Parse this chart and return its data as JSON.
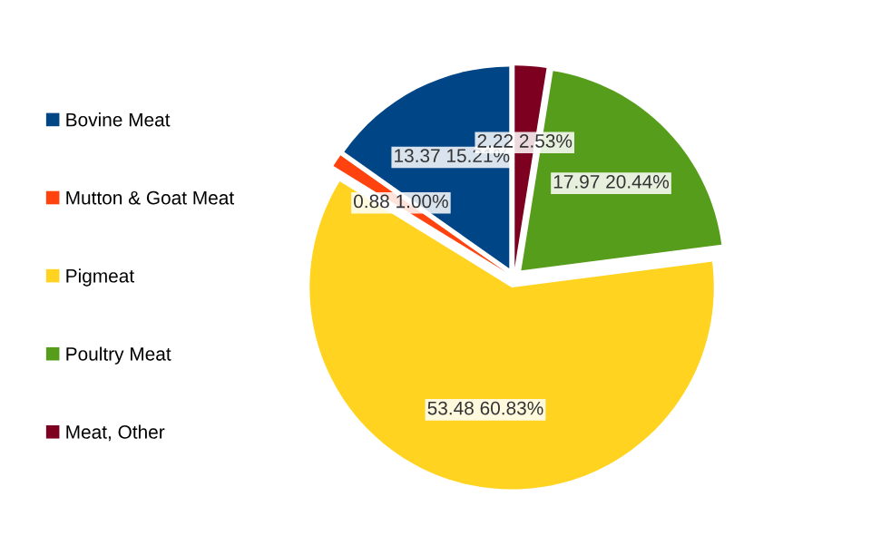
{
  "chart_data": {
    "type": "pie",
    "categories": [
      "Bovine Meat",
      "Mutton & Goat Meat",
      "Pigmeat",
      "Poultry Meat",
      "Meat, Other"
    ],
    "values": [
      13.37,
      0.88,
      53.48,
      17.97,
      2.22
    ],
    "colors": [
      "#004586",
      "#ff420e",
      "#ffd320",
      "#579d1c",
      "#7e0021"
    ],
    "value_labels": [
      "13.37 15.21%",
      "0.88 1.00%",
      "53.48 60.83%",
      "17.97 20.44%",
      "2.22 2.53%"
    ],
    "legend": "left"
  }
}
